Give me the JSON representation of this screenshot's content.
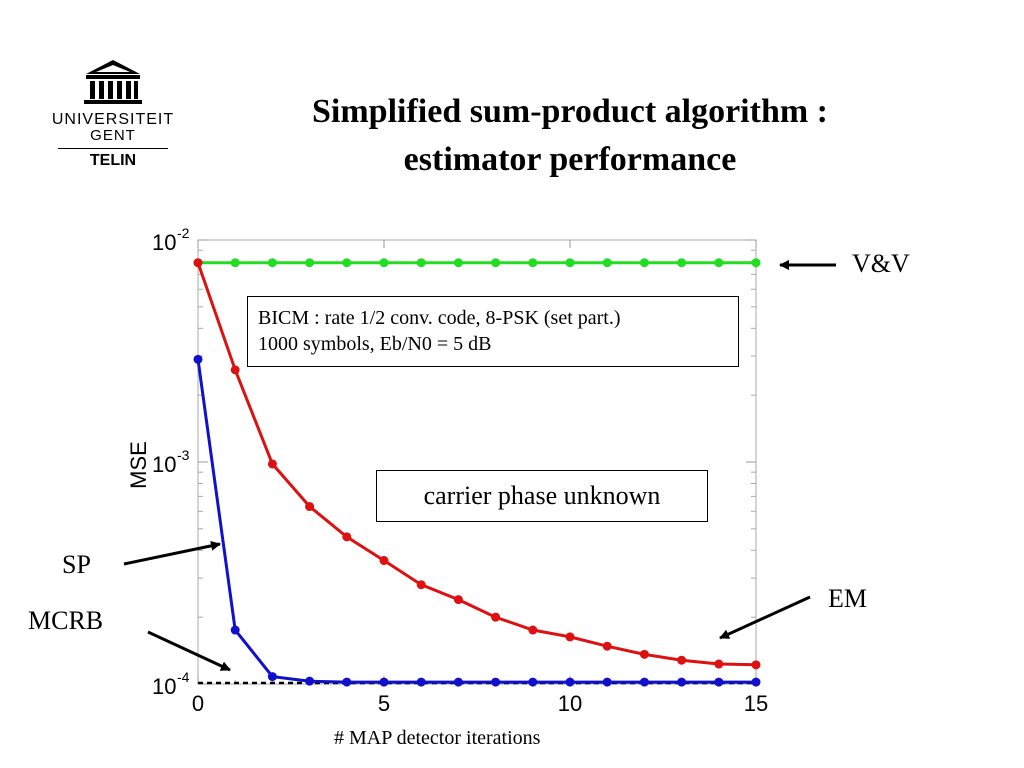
{
  "logo": {
    "line1": "UNIVERSITEIT",
    "line2": "GENT",
    "dept": "TELIN"
  },
  "slide": {
    "title_line1": "Simplified sum-product algorithm :",
    "title_line2": "estimator performance"
  },
  "chart_data": {
    "type": "line",
    "ylabel": "MSE",
    "xlabel": "# MAP detector iterations",
    "yscale": "log",
    "ylim": [
      0.0001,
      0.01
    ],
    "xlim": [
      0,
      15
    ],
    "x_ticks": [
      "0",
      "5",
      "10",
      "15"
    ],
    "y_ticks": [
      {
        "base": "10",
        "exp": "-2"
      },
      {
        "base": "10",
        "exp": "-3"
      },
      {
        "base": "10",
        "exp": "-4"
      }
    ],
    "grid": false,
    "x": [
      0,
      1,
      2,
      3,
      4,
      5,
      6,
      7,
      8,
      9,
      10,
      11,
      12,
      13,
      14,
      15
    ],
    "series": [
      {
        "name": "V&V",
        "color": "#22dd22",
        "values": [
          0.0079,
          0.0079,
          0.0079,
          0.0079,
          0.0079,
          0.0079,
          0.0079,
          0.0079,
          0.0079,
          0.0079,
          0.0079,
          0.0079,
          0.0079,
          0.0079,
          0.0079,
          0.0079
        ]
      },
      {
        "name": "EM",
        "color": "#dd1111",
        "values": [
          0.0079,
          0.0026,
          0.00098,
          0.00063,
          0.00046,
          0.00036,
          0.00028,
          0.00024,
          0.0002,
          0.000175,
          0.000163,
          0.000148,
          0.000136,
          0.000128,
          0.000123,
          0.000122
        ]
      },
      {
        "name": "SP",
        "color": "#1111cc",
        "values": [
          0.0029,
          0.000175,
          0.000108,
          0.000103,
          0.000102,
          0.000102,
          0.000102,
          0.000102,
          0.000102,
          0.000102,
          0.000102,
          0.000102,
          0.000102,
          0.000102,
          0.000102,
          0.000102
        ]
      },
      {
        "name": "MCRB",
        "color": "#000000",
        "dashed": true,
        "values": [
          0.000101,
          0.000101,
          0.000101,
          0.000101,
          0.000101,
          0.000101,
          0.000101,
          0.000101,
          0.000101,
          0.000101,
          0.000101,
          0.000101,
          0.000101,
          0.000101,
          0.000101,
          0.000101
        ]
      }
    ],
    "annotations": {
      "info_line1": "BICM : rate 1/2 conv. code, 8-PSK (set part.)",
      "info_line2": "1000 symbols, Eb/N0 = 5 dB",
      "condition": "carrier phase unknown",
      "label_vv": "V&V",
      "label_em": "EM",
      "label_sp": "SP",
      "label_mcrb": "MCRB"
    }
  }
}
